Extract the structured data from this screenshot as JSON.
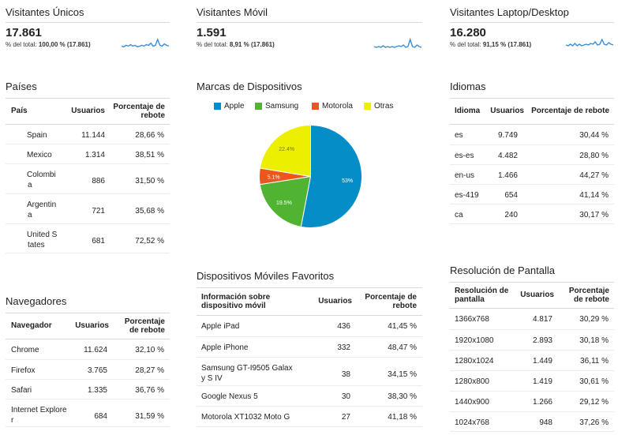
{
  "kpis": [
    {
      "title": "Visitantes Únicos",
      "value": "17.861",
      "pct_prefix": "% del total: ",
      "pct": "100,00 %",
      "total": "(17.861)",
      "spark": [
        5,
        4,
        6,
        5,
        7,
        5,
        6,
        4,
        5,
        6,
        5,
        7,
        6,
        9,
        5,
        6,
        14,
        6,
        5,
        8,
        6,
        5
      ],
      "color": "#3a8fd6"
    },
    {
      "title": "Visitantes Móvil",
      "value": "1.591",
      "pct_prefix": "% del total: ",
      "pct": "8,91 %",
      "total": "(17.861)",
      "spark": [
        4,
        3,
        4,
        3,
        5,
        3,
        4,
        3,
        4,
        3,
        4,
        5,
        4,
        6,
        3,
        4,
        13,
        4,
        3,
        6,
        4,
        3
      ],
      "color": "#3a8fd6"
    },
    {
      "title": "Visitantes Laptop/Desktop",
      "value": "16.280",
      "pct_prefix": "% del total: ",
      "pct": "91,15 %",
      "total": "(17.861)",
      "spark": [
        6,
        5,
        7,
        5,
        8,
        5,
        7,
        5,
        6,
        7,
        6,
        8,
        7,
        10,
        6,
        7,
        13,
        7,
        6,
        9,
        7,
        6
      ],
      "color": "#3a8fd6"
    }
  ],
  "paises": {
    "title": "Países",
    "headers": [
      "País",
      "Usuarios",
      "Porcentaje de rebote"
    ],
    "rows": [
      {
        "name": "Spain",
        "name2": "",
        "users": "11.144",
        "rate": "28,66 %"
      },
      {
        "name": "Mexico",
        "name2": "",
        "users": "1.314",
        "rate": "38,51 %"
      },
      {
        "name": "Colombi",
        "name2": "a",
        "users": "886",
        "rate": "31,50 %"
      },
      {
        "name": "Argentin",
        "name2": "a",
        "users": "721",
        "rate": "35,68 %"
      },
      {
        "name": "United S",
        "name2": "tates",
        "users": "681",
        "rate": "72,52 %"
      }
    ]
  },
  "navegadores": {
    "title": "Navegadores",
    "headers": [
      "Navegador",
      "Usuarios",
      "Porcentaje de rebote"
    ],
    "rows": [
      {
        "name": "Chrome",
        "name2": "",
        "users": "11.624",
        "rate": "32,10 %"
      },
      {
        "name": "Firefox",
        "name2": "",
        "users": "3.765",
        "rate": "28,27 %"
      },
      {
        "name": "Safari",
        "name2": "",
        "users": "1.335",
        "rate": "36,76 %"
      },
      {
        "name": "Internet Explore",
        "name2": "r",
        "users": "684",
        "rate": "31,59 %"
      }
    ]
  },
  "marcas": {
    "title": "Marcas de Dispositivos",
    "chart_data": {
      "type": "pie",
      "categories": [
        "Apple",
        "Samsung",
        "Motorola",
        "Otras"
      ],
      "values": [
        53,
        19.5,
        5.1,
        22.4
      ],
      "labels": [
        "53%",
        "19.5%",
        "5.1%",
        "22.4%"
      ],
      "colors": [
        "#058dc7",
        "#50b432",
        "#ed561b",
        "#edef00"
      ],
      "legend_position": "top"
    }
  },
  "moviles": {
    "title": "Dispositivos Móviles Favoritos",
    "headers": [
      "Información sobre dispositivo móvil",
      "Usuarios",
      "Porcentaje de rebote"
    ],
    "rows": [
      {
        "name": "Apple iPad",
        "name2": "",
        "users": "436",
        "rate": "41,45 %"
      },
      {
        "name": "Apple iPhone",
        "name2": "",
        "users": "332",
        "rate": "48,47 %"
      },
      {
        "name": "Samsung GT-I9505 Galax",
        "name2": "y S IV",
        "users": "38",
        "rate": "34,15 %"
      },
      {
        "name": "Google Nexus 5",
        "name2": "",
        "users": "30",
        "rate": "38,30 %"
      },
      {
        "name": "Motorola XT1032 Moto G",
        "name2": "",
        "users": "27",
        "rate": "41,18 %"
      }
    ]
  },
  "idiomas": {
    "title": "Idiomas",
    "headers": [
      "Idioma",
      "Usuarios",
      "Porcentaje de rebote"
    ],
    "rows": [
      {
        "name": "es",
        "name2": "",
        "users": "9.749",
        "rate": "30,44 %"
      },
      {
        "name": "es-es",
        "name2": "",
        "users": "4.482",
        "rate": "28,80 %"
      },
      {
        "name": "en-us",
        "name2": "",
        "users": "1.466",
        "rate": "44,27 %"
      },
      {
        "name": "es-419",
        "name2": "",
        "users": "654",
        "rate": "41,14 %"
      },
      {
        "name": "ca",
        "name2": "",
        "users": "240",
        "rate": "30,17 %"
      }
    ]
  },
  "resolucion": {
    "title": "Resolución de Pantalla",
    "headers": [
      "Resolución de pantalla",
      "Usuarios",
      "Porcentaje de rebote"
    ],
    "rows": [
      {
        "name": "1366x768",
        "name2": "",
        "users": "4.817",
        "rate": "30,29 %"
      },
      {
        "name": "1920x1080",
        "name2": "",
        "users": "2.893",
        "rate": "30,18 %"
      },
      {
        "name": "1280x1024",
        "name2": "",
        "users": "1.449",
        "rate": "36,11 %"
      },
      {
        "name": "1280x800",
        "name2": "",
        "users": "1.419",
        "rate": "30,61 %"
      },
      {
        "name": "1440x900",
        "name2": "",
        "users": "1.266",
        "rate": "29,12 %"
      },
      {
        "name": "1024x768",
        "name2": "",
        "users": "948",
        "rate": "37,26 %"
      }
    ]
  }
}
